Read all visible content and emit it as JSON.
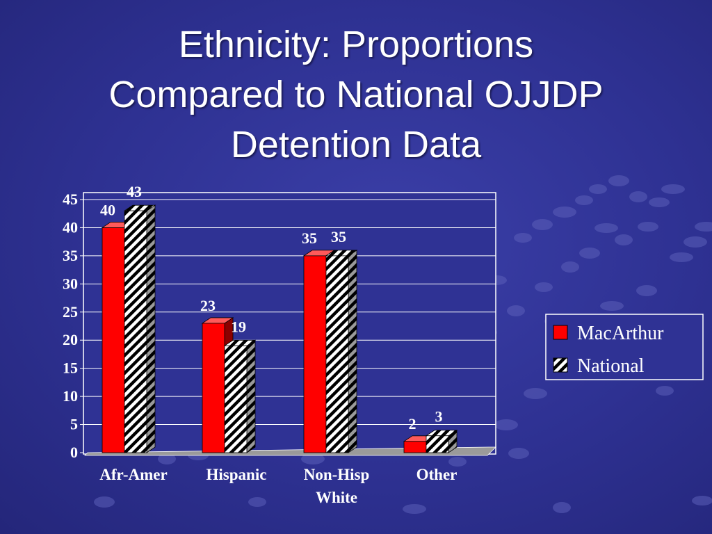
{
  "slide": {
    "title_lines": [
      "Ethnicity: Proportions",
      "Compared to National OJJDP",
      "Detention Data"
    ]
  },
  "chart_data": {
    "type": "bar",
    "title": "",
    "xlabel": "",
    "ylabel": "",
    "categories": [
      [
        "Afr-Amer"
      ],
      [
        "Hispanic"
      ],
      [
        "Non-Hisp",
        "White"
      ],
      [
        "Other"
      ]
    ],
    "series": [
      {
        "name": "MacArthur",
        "values": [
          40,
          23,
          35,
          2
        ],
        "color": "#ff0000",
        "pattern": "solid"
      },
      {
        "name": "National",
        "values": [
          43,
          19,
          35,
          3
        ],
        "color": "#000000",
        "pattern": "diagonal-stripes"
      }
    ],
    "ylim": [
      0,
      45
    ],
    "yticks": [
      0,
      5,
      10,
      15,
      20,
      25,
      30,
      35,
      40,
      45
    ],
    "grid": true,
    "legend_position": "right",
    "data_labels": true,
    "style": "3d-clustered-column"
  }
}
